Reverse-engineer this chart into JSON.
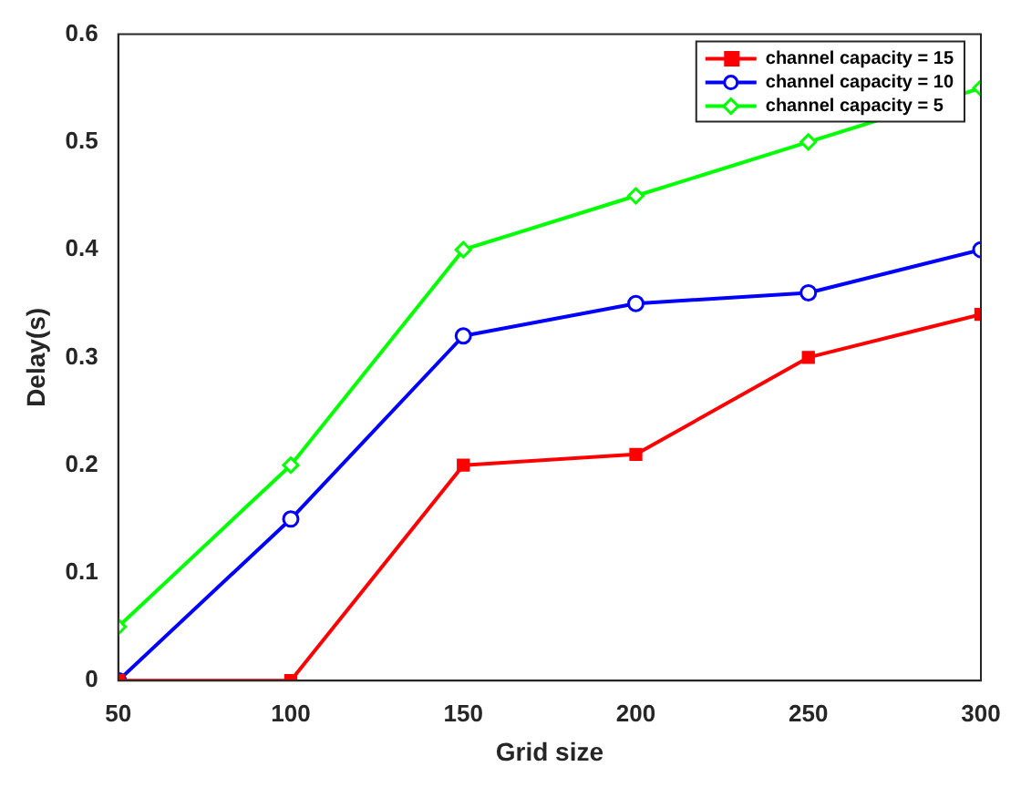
{
  "chart_data": {
    "type": "line",
    "xlabel": "Grid size",
    "ylabel": "Delay(s)",
    "x": [
      50,
      100,
      150,
      200,
      250,
      300
    ],
    "xlim": [
      50,
      300
    ],
    "xticks": [
      50,
      100,
      150,
      200,
      250,
      300
    ],
    "ylim": [
      0,
      0.6
    ],
    "yticks": [
      0,
      0.1,
      0.2,
      0.3,
      0.4,
      0.5,
      0.6
    ],
    "grid": false,
    "legend": "top right",
    "line_style": "solid",
    "series": [
      {
        "name": "channel capacity = 15",
        "color": "#ff0000",
        "marker": "square",
        "values": [
          0,
          0,
          0.2,
          0.21,
          0.3,
          0.34
        ]
      },
      {
        "name": "channel capacity = 10",
        "color": "#0000ff",
        "marker": "circle",
        "values": [
          0,
          0.15,
          0.32,
          0.35,
          0.36,
          0.4
        ]
      },
      {
        "name": "channel capacity = 5",
        "color": "#00ff00",
        "marker": "diamond",
        "values": [
          0.05,
          0.2,
          0.4,
          0.45,
          0.5,
          0.55
        ]
      }
    ]
  }
}
